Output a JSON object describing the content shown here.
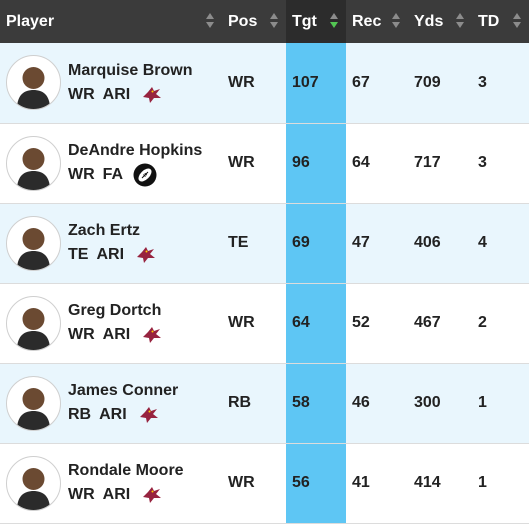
{
  "header": {
    "player": "Player",
    "pos": "Pos",
    "tgt": "Tgt",
    "rec": "Rec",
    "yds": "Yds",
    "td": "TD"
  },
  "colors": {
    "header_bg": "#3b3b3b",
    "highlight_column": "#5ec6f4",
    "row_alt": "#e9f6fd",
    "sort_active": "#53c653"
  },
  "rows": [
    {
      "name": "Marquise Brown",
      "pos": "WR",
      "team": "ARI",
      "team_icon": "cardinals-logo-icon",
      "tgt": "107",
      "rec": "67",
      "yds": "709",
      "td": "3"
    },
    {
      "name": "DeAndre Hopkins",
      "pos": "WR",
      "team": "FA",
      "team_icon": "football-icon",
      "tgt": "96",
      "rec": "64",
      "yds": "717",
      "td": "3"
    },
    {
      "name": "Zach Ertz",
      "pos": "TE",
      "team": "ARI",
      "team_icon": "cardinals-logo-icon",
      "tgt": "69",
      "rec": "47",
      "yds": "406",
      "td": "4"
    },
    {
      "name": "Greg Dortch",
      "pos": "WR",
      "team": "ARI",
      "team_icon": "cardinals-logo-icon",
      "tgt": "64",
      "rec": "52",
      "yds": "467",
      "td": "2"
    },
    {
      "name": "James Conner",
      "pos": "RB",
      "team": "ARI",
      "team_icon": "cardinals-logo-icon",
      "tgt": "58",
      "rec": "46",
      "yds": "300",
      "td": "1"
    },
    {
      "name": "Rondale Moore",
      "pos": "WR",
      "team": "ARI",
      "team_icon": "cardinals-logo-icon",
      "tgt": "56",
      "rec": "41",
      "yds": "414",
      "td": "1"
    }
  ]
}
